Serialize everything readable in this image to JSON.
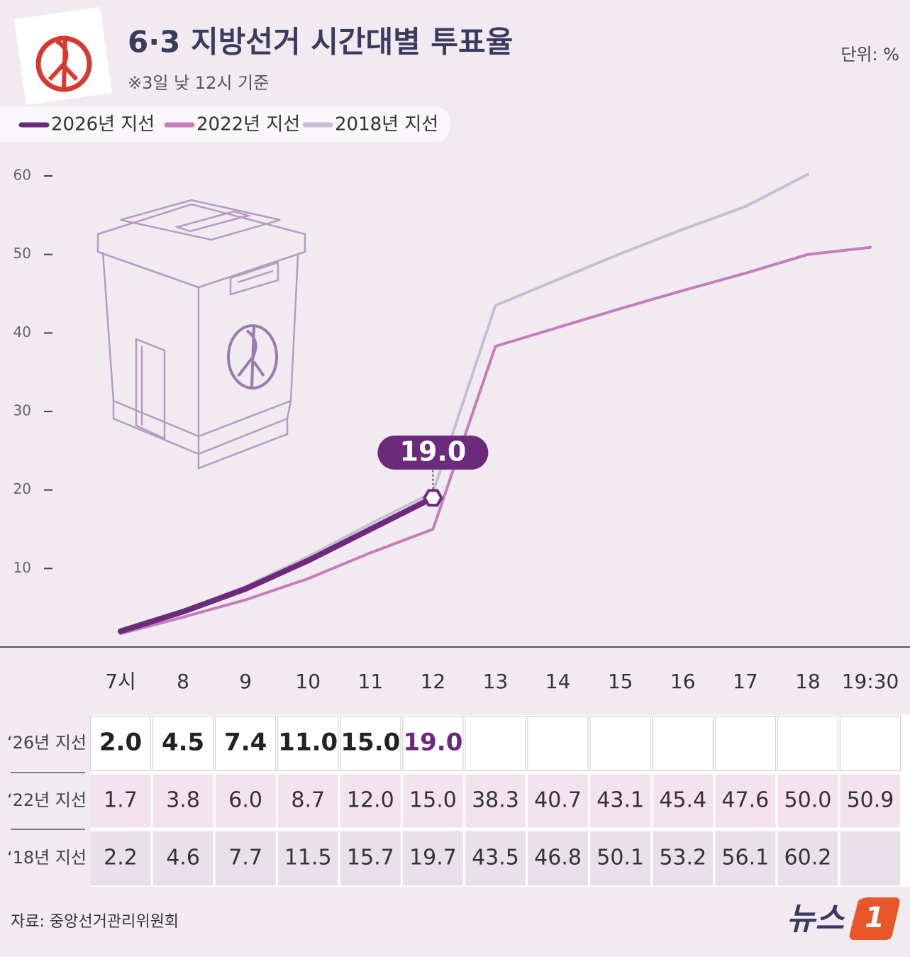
{
  "chart_data": {
    "type": "line",
    "title": "6·3 지방선거 시간대별 투표율",
    "subtitle": "※3일 낮 12시 기준",
    "unit": "단위: %",
    "source": "자료: 중앙선거관리위원회",
    "logo": "뉴스",
    "logo_mark": "1",
    "categories": [
      "7시",
      "8",
      "9",
      "10",
      "11",
      "12",
      "13",
      "14",
      "15",
      "16",
      "17",
      "18",
      "19:30"
    ],
    "series": [
      {
        "name": "2026년 지선",
        "row_label": "‘26년 지선",
        "color": "#6b2a7a",
        "values": [
          2.0,
          4.5,
          7.4,
          11.0,
          15.0,
          19.0,
          null,
          null,
          null,
          null,
          null,
          null,
          null
        ],
        "value_labels": [
          "2.0",
          "4.5",
          "7.4",
          "11.0",
          "15.0",
          "19.0",
          null,
          null,
          null,
          null,
          null,
          null,
          null
        ]
      },
      {
        "name": "2022년 지선",
        "row_label": "‘22년 지선",
        "color": "#c57dbb",
        "values": [
          1.7,
          3.8,
          6.0,
          8.7,
          12.0,
          15.0,
          38.3,
          40.7,
          43.1,
          45.4,
          47.6,
          50.0,
          50.9
        ],
        "value_labels": [
          "1.7",
          "3.8",
          "6.0",
          "8.7",
          "12.0",
          "15.0",
          "38.3",
          "40.7",
          "43.1",
          "45.4",
          "47.6",
          "50.0",
          "50.9"
        ]
      },
      {
        "name": "2018년 지선",
        "row_label": "‘18년 지선",
        "color": "#c6bfd3",
        "values": [
          2.2,
          4.6,
          7.7,
          11.5,
          15.7,
          19.7,
          43.5,
          46.8,
          50.1,
          53.2,
          56.1,
          60.2,
          null
        ],
        "value_labels": [
          "2.2",
          "4.6",
          "7.7",
          "11.5",
          "15.7",
          "19.7",
          "43.5",
          "46.8",
          "50.1",
          "53.2",
          "56.1",
          "60.2",
          null
        ]
      }
    ],
    "ylim": [
      0,
      60
    ],
    "yticks": [
      10,
      20,
      30,
      40,
      50,
      60
    ]
  }
}
